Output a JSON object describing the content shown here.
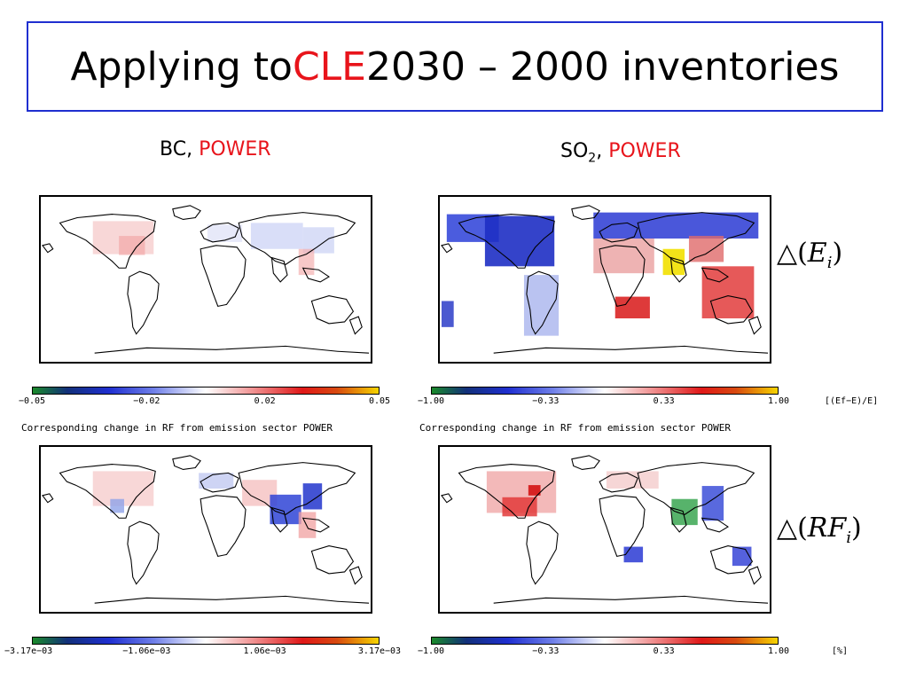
{
  "title": {
    "prefix": "Applying to ",
    "highlight": "CLE",
    "suffix": " 2030 – 2000 inventories"
  },
  "columns": {
    "left": {
      "species": "BC, ",
      "sector": "POWER"
    },
    "right": {
      "species": "SO",
      "species_sub": "2",
      "species_tail": ", ",
      "sector": "POWER"
    }
  },
  "row_labels": {
    "emissions": {
      "pre": "△(",
      "var": "E",
      "sub": "i",
      "post": ")"
    },
    "forcing": {
      "pre": "△(",
      "var": "RF",
      "sub": "i",
      "post": ")"
    }
  },
  "captions": {
    "left": "Corresponding change in RF from emission sector POWER",
    "right": "Corresponding change in RF from emission sector POWER"
  },
  "colorbars": {
    "top_left": {
      "ticks": [
        "−0.05",
        "−0.02",
        "0.02",
        "0.05"
      ]
    },
    "top_right": {
      "ticks": [
        "−1.00",
        "−0.33",
        "0.33",
        "1.00"
      ],
      "unit": "[(Ef−E)/E]"
    },
    "bottom_left": {
      "ticks": [
        "−3.17e−03",
        "−1.06e−03",
        "1.06e−03",
        "3.17e−03"
      ]
    },
    "bottom_right": {
      "ticks": [
        "−1.00",
        "−0.33",
        "0.33",
        "1.00"
      ],
      "unit": "[%]"
    }
  },
  "colors": {
    "title_border": "#1f2fd0",
    "highlight": "#e8141b"
  }
}
